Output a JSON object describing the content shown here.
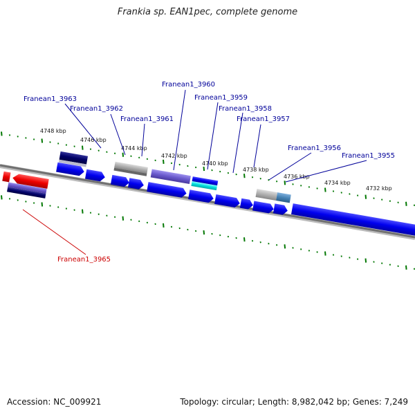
{
  "title": "Frankia sp. EAN1pec, complete genome",
  "footer": {
    "accession": "Accession: NC_009921",
    "summary": "Topology: circular; Length: 8,982,042 bp; Genes: 7,249"
  },
  "colors": {
    "forward_gene": "#0000ee",
    "highlight_gene": "#ee0000",
    "dark_gene": "#000066",
    "purple_gene": "#6a5acd",
    "gray_gene": "#b0b0b0",
    "cyan_gene": "#00dddd",
    "steel_gene": "#4682b4",
    "label_blue": "#000099",
    "label_red": "#cc0000",
    "tick": "#007700",
    "backbone": "#808080"
  },
  "scale": {
    "unit": "kbp",
    "labels": [
      "4748 kbp",
      "4746 kbp",
      "4744 kbp",
      "4742 kbp",
      "4740 kbp",
      "4738 kbp",
      "4736 kbp",
      "4734 kbp",
      "4732 kbp"
    ]
  },
  "gene_labels": [
    {
      "id": "g3963",
      "text": "Franean1_3963",
      "color": "blue"
    },
    {
      "id": "g3962",
      "text": "Franean1_3962",
      "color": "blue"
    },
    {
      "id": "g3961",
      "text": "Franean1_3961",
      "color": "blue"
    },
    {
      "id": "g3960",
      "text": "Franean1_3960",
      "color": "blue"
    },
    {
      "id": "g3959",
      "text": "Franean1_3959",
      "color": "blue"
    },
    {
      "id": "g3958",
      "text": "Franean1_3958",
      "color": "blue"
    },
    {
      "id": "g3957",
      "text": "Franean1_3957",
      "color": "blue"
    },
    {
      "id": "g3956",
      "text": "Franean1_3956",
      "color": "blue"
    },
    {
      "id": "g3955",
      "text": "Franean1_3955",
      "color": "blue"
    },
    {
      "id": "g3965",
      "text": "Franean1_3965",
      "color": "red"
    }
  ]
}
